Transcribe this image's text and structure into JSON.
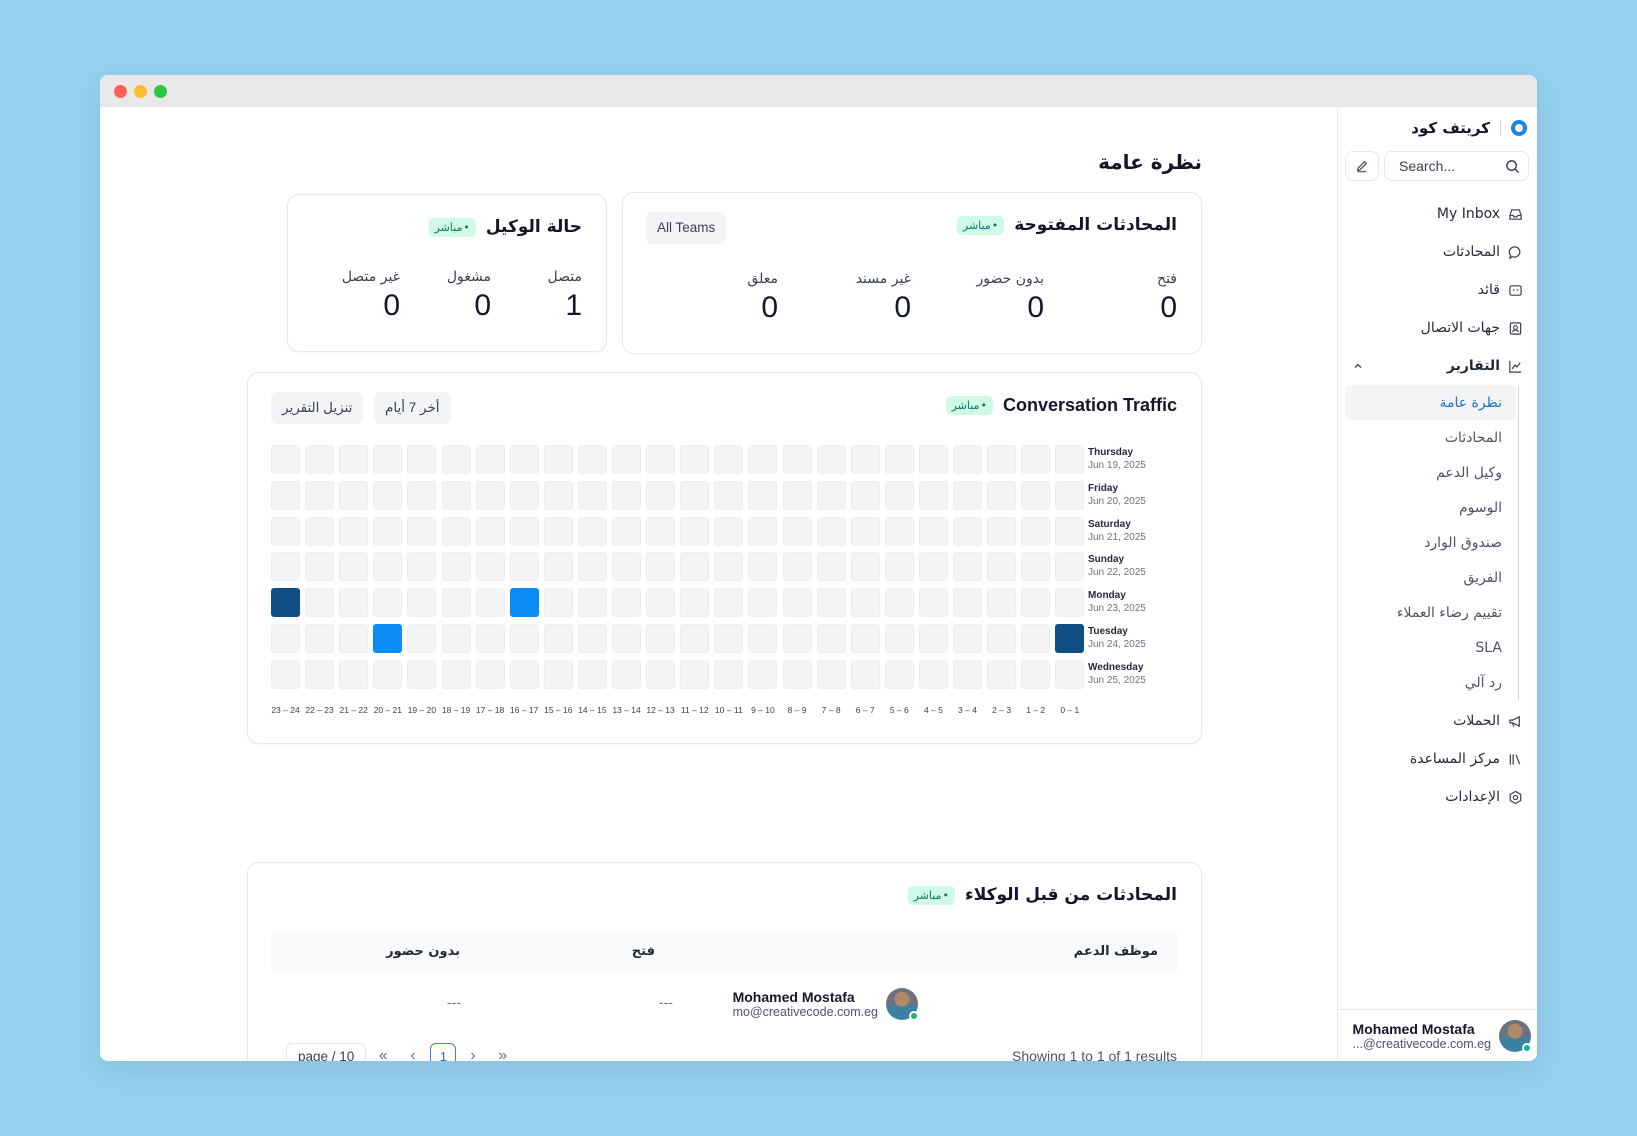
{
  "brand": {
    "name": "كريتف كود"
  },
  "search": {
    "placeholder": "Search..."
  },
  "nav": {
    "items": [
      {
        "label": "My Inbox",
        "icon": "inbox-icon"
      },
      {
        "label": "المحادثات",
        "icon": "chat-bubble-icon"
      },
      {
        "label": "قائد",
        "icon": "captain-icon"
      },
      {
        "label": "جهات الاتصال",
        "icon": "contacts-icon"
      },
      {
        "label": "التقارير",
        "icon": "chart-icon"
      }
    ],
    "reports_sub": [
      "نظرة عامة",
      "المحادثات",
      "وكيل الدعم",
      "الوسوم",
      "صندوق الوارد",
      "الفريق",
      "تقييم رضاء العملاء",
      "SLA",
      "رد آلي"
    ],
    "bottom_items": [
      {
        "label": "الحملات",
        "icon": "megaphone-icon"
      },
      {
        "label": "مركز المساعدة",
        "icon": "library-icon"
      },
      {
        "label": "الإعدادات",
        "icon": "settings-icon"
      }
    ]
  },
  "profile": {
    "name": "Mohamed Mostafa",
    "email": "...@creativecode.com.eg"
  },
  "page": {
    "title": "نظرة عامة"
  },
  "live_label": "مباشر",
  "open_conversations": {
    "title": "المحادثات المفتوحة",
    "filter": "All Teams",
    "metrics": [
      {
        "label": "فتح",
        "value": "0"
      },
      {
        "label": "بدون حضور",
        "value": "0"
      },
      {
        "label": "غير مسند",
        "value": "0"
      },
      {
        "label": "معلق",
        "value": "0"
      }
    ]
  },
  "agent_status": {
    "title": "حالة الوكيل",
    "metrics": [
      {
        "label": "متصل",
        "value": "1"
      },
      {
        "label": "مشغول",
        "value": "0"
      },
      {
        "label": "غير متصل",
        "value": "0"
      }
    ]
  },
  "traffic": {
    "title": "Conversation Traffic",
    "range_button": "أخر 7 أيام",
    "download_button": "تنزيل التقرير",
    "days": [
      {
        "name": "Thursday",
        "date": "Jun 19, 2025"
      },
      {
        "name": "Friday",
        "date": "Jun 20, 2025"
      },
      {
        "name": "Saturday",
        "date": "Jun 21, 2025"
      },
      {
        "name": "Sunday",
        "date": "Jun 22, 2025"
      },
      {
        "name": "Monday",
        "date": "Jun 23, 2025"
      },
      {
        "name": "Tuesday",
        "date": "Jun 24, 2025"
      },
      {
        "name": "Wednesday",
        "date": "Jun 25, 2025"
      }
    ],
    "hours": [
      "0 – 1",
      "1 – 2",
      "2 – 3",
      "3 – 4",
      "4 – 5",
      "5 – 6",
      "6 – 7",
      "7 – 8",
      "8 – 9",
      "9 – 10",
      "10 – 11",
      "11 – 12",
      "12 – 13",
      "13 – 14",
      "14 – 15",
      "15 – 16",
      "16 – 17",
      "17 – 18",
      "18 – 19",
      "19 – 20",
      "20 – 21",
      "21 – 22",
      "22 – 23",
      "23 – 24"
    ],
    "active_cells": [
      {
        "day": 4,
        "hour": 23,
        "level": "high",
        "color": "#114e86"
      },
      {
        "day": 4,
        "hour": 16,
        "level": "medium",
        "color": "#0b8cf5"
      },
      {
        "day": 5,
        "hour": 20,
        "level": "medium",
        "color": "#0b8cf5"
      },
      {
        "day": 5,
        "hour": 0,
        "level": "high",
        "color": "#114e86"
      }
    ]
  },
  "agents_table": {
    "title": "المحادثات من قبل الوكلاء",
    "columns": [
      "موظف الدعم",
      "فتح",
      "بدون حضور"
    ],
    "rows": [
      {
        "name": "Mohamed Mostafa",
        "email": "mo@creativecode.com.eg",
        "open": "---",
        "unattended": "---"
      }
    ],
    "showing": "Showing 1 to 1 of 1 results",
    "page_input": "page / 10",
    "current_page": "1"
  }
}
